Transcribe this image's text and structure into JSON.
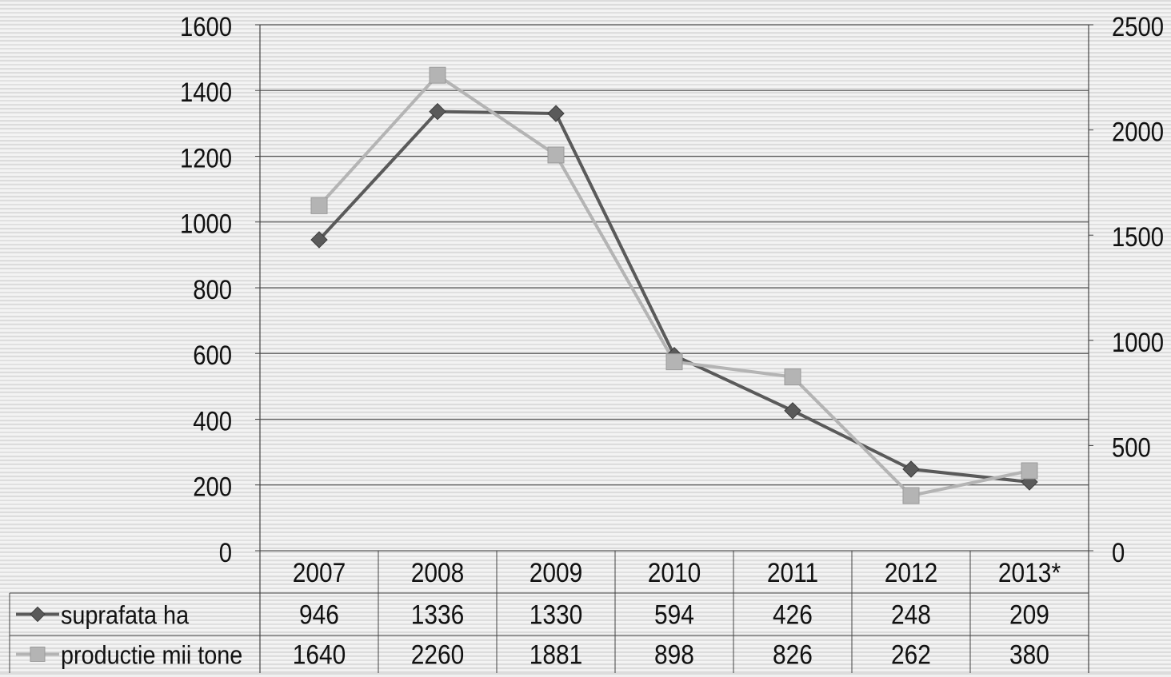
{
  "chart_data": {
    "type": "line",
    "categories": [
      "2007",
      "2008",
      "2009",
      "2010",
      "2011",
      "2012",
      "2013*"
    ],
    "series": [
      {
        "name": "suprafata ha",
        "values": [
          946,
          1336,
          1330,
          594,
          426,
          248,
          209
        ],
        "axis": "left",
        "color": "#5a5a5a",
        "marker": "diamond"
      },
      {
        "name": "productie mii tone",
        "values": [
          1640,
          2260,
          1881,
          898,
          826,
          262,
          380
        ],
        "axis": "right",
        "color": "#b4b4b4",
        "marker": "square"
      }
    ],
    "left_axis": {
      "ylim": [
        0,
        1600
      ],
      "ticks": [
        0,
        200,
        400,
        600,
        800,
        1000,
        1200,
        1400,
        1600
      ]
    },
    "right_axis": {
      "ylim": [
        0,
        2500
      ],
      "ticks": [
        0,
        500,
        1000,
        1500,
        2000,
        2500
      ]
    },
    "grid": true,
    "data_table": true,
    "title": "",
    "xlabel": "",
    "ylabel": ""
  }
}
